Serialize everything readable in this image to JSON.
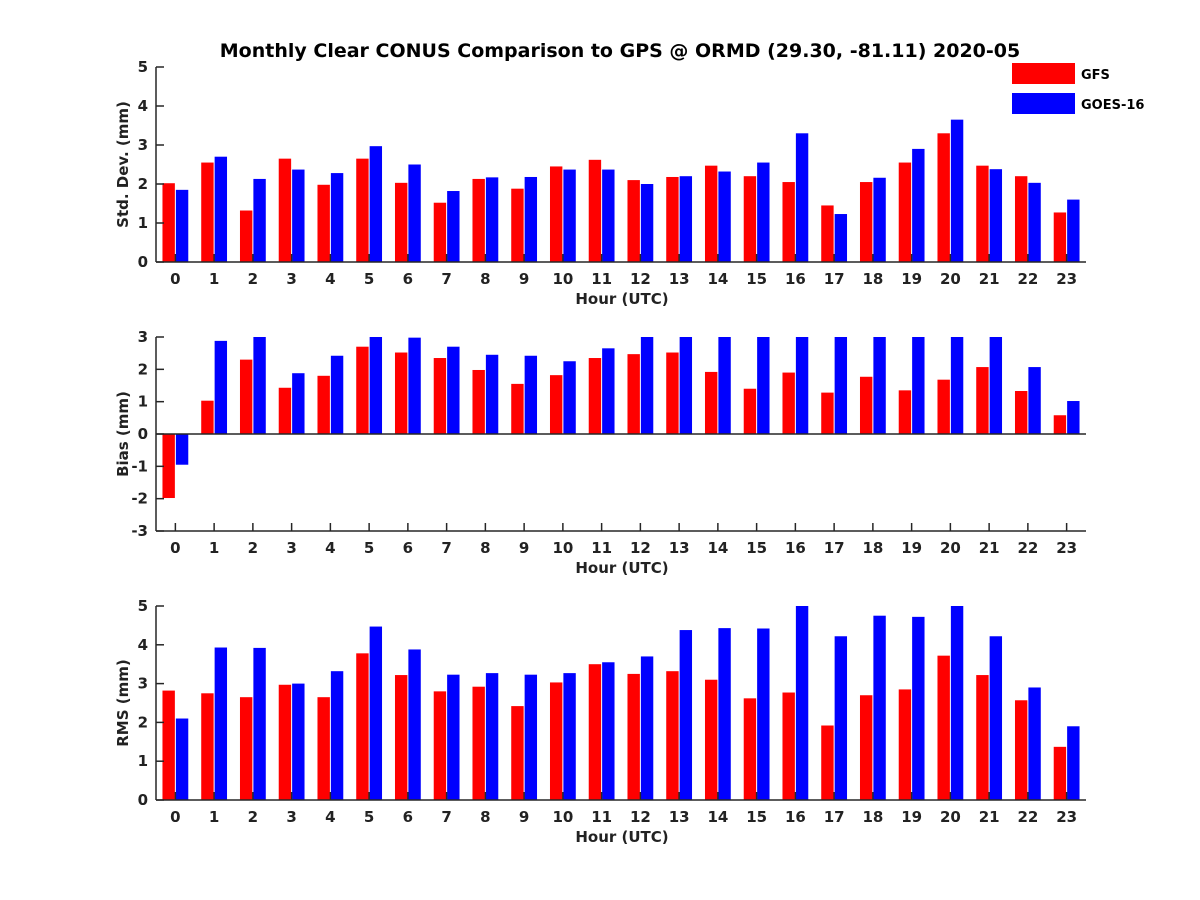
{
  "title": "Monthly Clear CONUS Comparison to GPS @ ORMD (29.30, -81.11) 2020-05",
  "legend": [
    {
      "name": "GFS",
      "color": "#ff0000"
    },
    {
      "name": "GOES-16",
      "color": "#0000ff"
    }
  ],
  "chart_data": [
    {
      "type": "bar",
      "xlabel": "Hour (UTC)",
      "ylabel": "Std. Dev. (mm)",
      "ylim": [
        0,
        5
      ],
      "yticks": [
        0,
        1,
        2,
        3,
        4,
        5
      ],
      "categories": [
        "0",
        "1",
        "2",
        "3",
        "4",
        "5",
        "6",
        "7",
        "8",
        "9",
        "10",
        "11",
        "12",
        "13",
        "14",
        "15",
        "16",
        "17",
        "18",
        "19",
        "20",
        "21",
        "22",
        "23"
      ],
      "series": [
        {
          "name": "GFS",
          "color": "#ff0000",
          "values": [
            2.02,
            2.55,
            1.32,
            2.65,
            1.98,
            2.65,
            2.03,
            1.52,
            2.13,
            1.88,
            2.45,
            2.62,
            2.1,
            2.18,
            2.47,
            2.2,
            2.05,
            1.45,
            2.05,
            2.55,
            3.3,
            2.47,
            2.2,
            1.27
          ]
        },
        {
          "name": "GOES-16",
          "color": "#0000ff",
          "values": [
            1.85,
            2.7,
            2.13,
            2.37,
            2.28,
            2.97,
            2.5,
            1.82,
            2.17,
            2.18,
            2.37,
            2.37,
            2.0,
            2.2,
            2.32,
            2.55,
            3.3,
            1.23,
            2.16,
            2.9,
            3.65,
            2.38,
            2.03,
            1.6
          ]
        }
      ]
    },
    {
      "type": "bar",
      "xlabel": "Hour (UTC)",
      "ylabel": "Bias (mm)",
      "ylim": [
        -3,
        3
      ],
      "yticks": [
        -3,
        -2,
        -1,
        0,
        1,
        2,
        3
      ],
      "categories": [
        "0",
        "1",
        "2",
        "3",
        "4",
        "5",
        "6",
        "7",
        "8",
        "9",
        "10",
        "11",
        "12",
        "13",
        "14",
        "15",
        "16",
        "17",
        "18",
        "19",
        "20",
        "21",
        "22",
        "23"
      ],
      "series": [
        {
          "name": "GFS",
          "color": "#ff0000",
          "values": [
            -1.98,
            1.03,
            2.3,
            1.43,
            1.8,
            2.7,
            2.52,
            2.35,
            1.98,
            1.55,
            1.82,
            2.35,
            2.47,
            2.52,
            1.92,
            1.4,
            1.9,
            1.28,
            1.77,
            1.35,
            1.68,
            2.07,
            1.33,
            0.58
          ]
        },
        {
          "name": "GOES-16",
          "color": "#0000ff",
          "values": [
            -0.95,
            2.88,
            3.0,
            1.88,
            2.42,
            3.0,
            2.98,
            2.7,
            2.45,
            2.42,
            2.25,
            2.65,
            3.0,
            3.0,
            3.0,
            3.0,
            3.0,
            3.0,
            3.0,
            3.0,
            3.0,
            3.0,
            2.07,
            1.02
          ]
        }
      ]
    },
    {
      "type": "bar",
      "xlabel": "Hour (UTC)",
      "ylabel": "RMS (mm)",
      "ylim": [
        0,
        5
      ],
      "yticks": [
        0,
        1,
        2,
        3,
        4,
        5
      ],
      "categories": [
        "0",
        "1",
        "2",
        "3",
        "4",
        "5",
        "6",
        "7",
        "8",
        "9",
        "10",
        "11",
        "12",
        "13",
        "14",
        "15",
        "16",
        "17",
        "18",
        "19",
        "20",
        "21",
        "22",
        "23"
      ],
      "series": [
        {
          "name": "GFS",
          "color": "#ff0000",
          "values": [
            2.82,
            2.75,
            2.65,
            2.97,
            2.65,
            3.78,
            3.22,
            2.8,
            2.92,
            2.42,
            3.03,
            3.5,
            3.25,
            3.32,
            3.1,
            2.62,
            2.77,
            1.92,
            2.7,
            2.85,
            3.72,
            3.22,
            2.57,
            1.37
          ]
        },
        {
          "name": "GOES-16",
          "color": "#0000ff",
          "values": [
            2.1,
            3.93,
            3.92,
            3.0,
            3.32,
            4.47,
            3.88,
            3.23,
            3.27,
            3.23,
            3.27,
            3.55,
            3.7,
            4.38,
            4.43,
            4.42,
            5.0,
            4.22,
            4.75,
            4.72,
            5.0,
            4.22,
            2.9,
            1.9
          ]
        }
      ]
    }
  ]
}
